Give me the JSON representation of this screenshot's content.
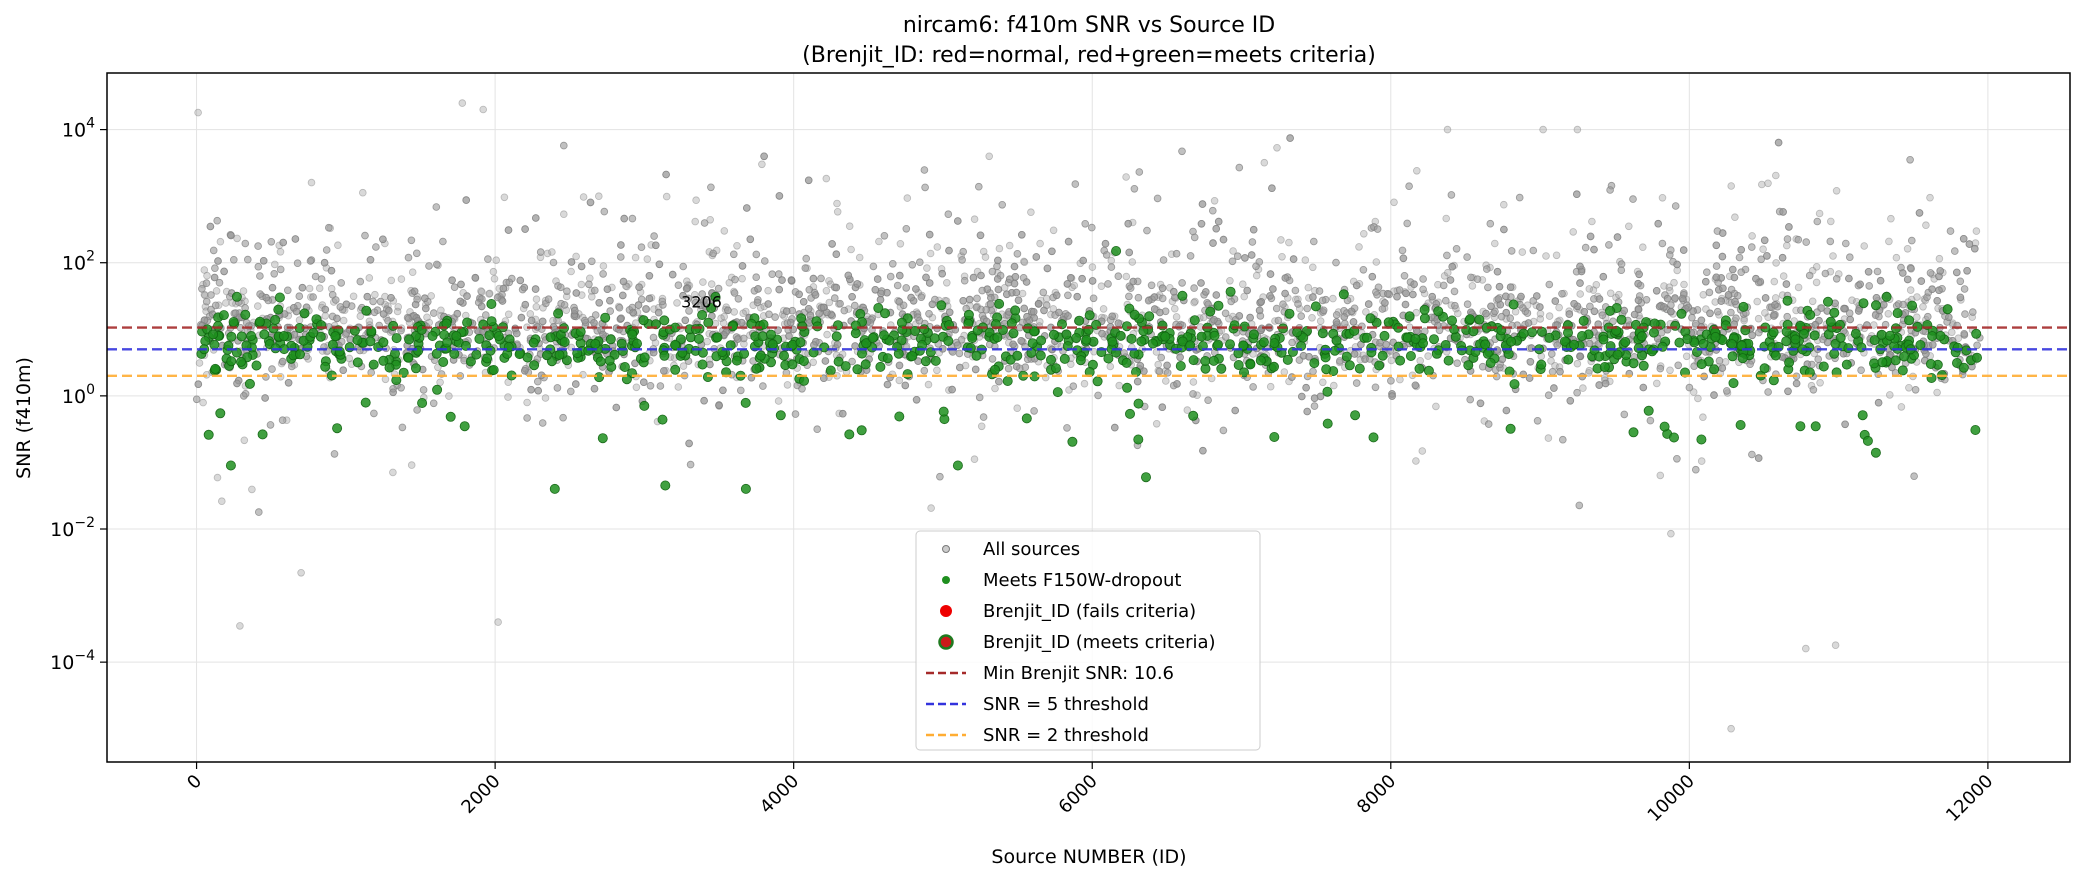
{
  "chart_data": {
    "type": "scatter",
    "title": "nircam6: f410m SNR vs Source ID",
    "subtitle": "(Brenjit_ID: red=normal, red+green=meets criteria)",
    "xlabel": "Source NUMBER (ID)",
    "ylabel": "SNR (f410m)",
    "xlim": [
      -600,
      12550
    ],
    "ylim_log10": [
      -5.5,
      4.85
    ],
    "x_ticks": [
      0,
      2000,
      4000,
      6000,
      8000,
      10000,
      12000
    ],
    "x_tick_labels": [
      "0",
      "2000",
      "4000",
      "6000",
      "8000",
      "10000",
      "12000"
    ],
    "y_ticks_log10": [
      -4,
      -2,
      0,
      2,
      4
    ],
    "y_tick_labels": [
      {
        "base": "10",
        "exp": "−4"
      },
      {
        "base": "10",
        "exp": "−2"
      },
      {
        "base": "10",
        "exp": "0"
      },
      {
        "base": "10",
        "exp": "2"
      },
      {
        "base": "10",
        "exp": "4"
      }
    ],
    "grid": true,
    "legend_position": "bottom-center",
    "legend": [
      {
        "label": "All sources",
        "kind": "dot-gray"
      },
      {
        "label": "Meets F150W-dropout",
        "kind": "dot-green"
      },
      {
        "label": "Brenjit_ID (fails criteria)",
        "kind": "dot-red"
      },
      {
        "label": "Brenjit_ID (meets criteria)",
        "kind": "dot-red-green"
      },
      {
        "label": "Min Brenjit SNR: 10.6",
        "kind": "dash-brown"
      },
      {
        "label": "SNR = 5 threshold",
        "kind": "dash-blue"
      },
      {
        "label": "SNR = 2 threshold",
        "kind": "dash-orange"
      }
    ],
    "thresholds": [
      {
        "name": "min-brenjit",
        "value": 10.6,
        "color": "#a52a2a"
      },
      {
        "name": "snr-5",
        "value": 5,
        "color": "#3333dd"
      },
      {
        "name": "snr-2",
        "value": 2,
        "color": "#ffad33"
      }
    ],
    "annotation": {
      "text": "3206",
      "x": 3206,
      "y": 10.6
    },
    "series": [
      {
        "name": "All sources",
        "color": "#808080",
        "approx_count": 5500,
        "x_range": [
          0,
          11950
        ],
        "typical_snr_log10_center": 1.0,
        "notable_points": [
          {
            "x": 10,
            "y": 18000
          },
          {
            "x": 1780,
            "y": 25000
          },
          {
            "x": 1920,
            "y": 20000
          },
          {
            "x": 8380,
            "y": 10000
          },
          {
            "x": 9020,
            "y": 10000
          },
          {
            "x": 9250,
            "y": 10000
          },
          {
            "x": 10280,
            "y": 1e-05
          },
          {
            "x": 2020,
            "y": 0.0004
          },
          {
            "x": 290,
            "y": 0.00035
          },
          {
            "x": 700,
            "y": 0.0022
          },
          {
            "x": 10780,
            "y": 0.00016
          },
          {
            "x": 10980,
            "y": 0.00018
          }
        ]
      },
      {
        "name": "Meets F150W-dropout",
        "color": "#1a8a1a",
        "approx_count": 900,
        "x_range": [
          30,
          11930
        ],
        "typical_snr_range": [
          1,
          30
        ],
        "notable_points": [
          {
            "x": 6160,
            "y": 150
          },
          {
            "x": 5100,
            "y": 0.09
          },
          {
            "x": 230,
            "y": 0.09
          },
          {
            "x": 2400,
            "y": 0.04
          },
          {
            "x": 3140,
            "y": 0.045
          },
          {
            "x": 3680,
            "y": 0.04
          },
          {
            "x": 6360,
            "y": 0.06
          },
          {
            "x": 11250,
            "y": 0.14
          },
          {
            "x": 3206,
            "y": 10.6
          }
        ]
      }
    ]
  }
}
